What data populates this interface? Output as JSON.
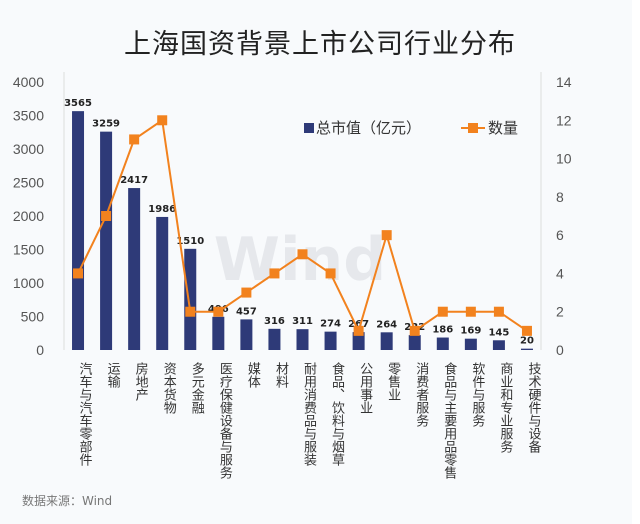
{
  "title": "上海国资背景上市公司行业分布",
  "source": "数据来源：Wind",
  "watermark": "Wind",
  "colors": {
    "bar": "#2e3a78",
    "line": "#f2821e"
  },
  "chart_data": {
    "type": "bar+line",
    "title": "上海国资背景上市公司行业分布",
    "categories": [
      "汽车与汽车零部件",
      "运输",
      "房地产",
      "资本货物",
      "多元金融",
      "医疗保健设备与服务",
      "媒体",
      "材料",
      "耐用消费品与服装",
      "食品、饮料与烟草",
      "公用事业",
      "零售业",
      "消费者服务",
      "食品与主要用品零售",
      "软件与服务",
      "商业和专业服务",
      "技术硬件与设备"
    ],
    "series": [
      {
        "name": "总市值（亿元）",
        "type": "bar",
        "axis": "left",
        "values": [
          3565,
          3259,
          2417,
          1986,
          1510,
          496,
          457,
          316,
          311,
          274,
          267,
          264,
          222,
          186,
          169,
          145,
          20
        ]
      },
      {
        "name": "数量",
        "type": "line",
        "axis": "right",
        "values": [
          4,
          7,
          11,
          12,
          2,
          2,
          3,
          4,
          5,
          4,
          1,
          6,
          1,
          2,
          2,
          2,
          1
        ]
      }
    ],
    "left_axis": {
      "ylim": [
        0,
        4000
      ],
      "ticks": [
        0,
        500,
        1000,
        1500,
        2000,
        2500,
        3000,
        3500,
        4000
      ]
    },
    "right_axis": {
      "ylim": [
        0,
        14
      ],
      "ticks": [
        0,
        2,
        4,
        6,
        8,
        10,
        12,
        14
      ]
    },
    "legend": "top-right",
    "grid": false
  }
}
